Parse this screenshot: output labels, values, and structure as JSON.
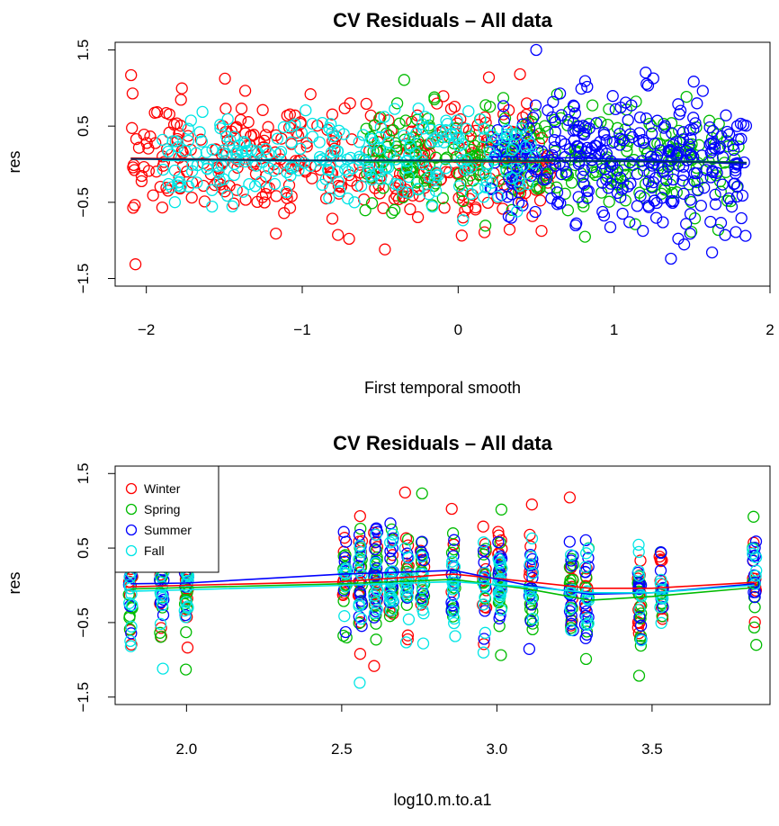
{
  "chart_data": [
    {
      "type": "scatter",
      "title": "CV Residuals – All data",
      "xlabel": "First temporal smooth",
      "ylabel": "res",
      "xlim": [
        -2.2,
        2.0
      ],
      "ylim": [
        -1.6,
        1.6
      ],
      "x_ticks": [
        "−2",
        "−1",
        "0",
        "1",
        "2"
      ],
      "x_tick_values": [
        -2,
        -1,
        0,
        1,
        2
      ],
      "y_ticks": [
        "−1.5",
        "−0.5",
        "0.5",
        "1.5"
      ],
      "y_tick_values": [
        -1.5,
        -0.5,
        0.5,
        1.5
      ],
      "grid": false,
      "legend": null,
      "series": [
        {
          "name": "Winter",
          "color": "#ff0000",
          "x_range": [
            -2.1,
            0.6
          ],
          "spread": 0.4,
          "n": 360,
          "smooth": [
            [
              -2.1,
              0.08
            ],
            [
              -1.0,
              0.05
            ],
            [
              0.0,
              0.03
            ],
            [
              0.6,
              0.03
            ]
          ]
        },
        {
          "name": "Spring",
          "color": "#00bb00",
          "x_range": [
            -0.6,
            1.8
          ],
          "spread": 0.35,
          "n": 300,
          "smooth": [
            [
              -0.6,
              0.03
            ],
            [
              0.5,
              0.04
            ],
            [
              1.2,
              0.05
            ],
            [
              1.8,
              0.03
            ]
          ]
        },
        {
          "name": "Summer",
          "color": "#0000ff",
          "x_range": [
            0.2,
            1.85
          ],
          "spread": 0.45,
          "n": 320,
          "smooth": [
            [
              0.2,
              0.1
            ],
            [
              0.8,
              0.08
            ],
            [
              1.3,
              0.05
            ],
            [
              1.85,
              0.0
            ]
          ]
        },
        {
          "name": "Fall",
          "color": "#00e5e5",
          "x_range": [
            -1.9,
            0.5
          ],
          "spread": 0.3,
          "n": 260,
          "smooth": [
            [
              -1.9,
              0.05
            ],
            [
              -1.0,
              0.04
            ],
            [
              0.0,
              0.05
            ],
            [
              0.5,
              0.05
            ]
          ]
        }
      ],
      "overall_smooth": {
        "color": "#003366",
        "points": [
          [
            -2.1,
            0.07
          ],
          [
            -1.0,
            0.05
          ],
          [
            0.0,
            0.05
          ],
          [
            1.0,
            0.04
          ],
          [
            1.85,
            0.02
          ]
        ]
      }
    },
    {
      "type": "scatter",
      "title": "CV Residuals – All data",
      "xlabel": "log10.m.to.a1",
      "ylabel": "res",
      "xlim": [
        1.77,
        3.88
      ],
      "ylim": [
        -1.6,
        1.6
      ],
      "x_ticks": [
        "2.0",
        "2.5",
        "3.0",
        "3.5"
      ],
      "x_tick_values": [
        2.0,
        2.5,
        3.0,
        3.5
      ],
      "y_ticks": [
        "−1.5",
        "−0.5",
        "0.5",
        "1.5"
      ],
      "y_tick_values": [
        -1.5,
        -0.5,
        0.5,
        1.5
      ],
      "grid": false,
      "legend": "top-left",
      "column_x": [
        1.82,
        1.92,
        2.0,
        2.51,
        2.56,
        2.61,
        2.66,
        2.71,
        2.76,
        2.86,
        2.96,
        3.01,
        3.11,
        3.24,
        3.29,
        3.46,
        3.53,
        3.83
      ],
      "series": [
        {
          "name": "Winter",
          "color": "#ff0000",
          "smooth": [
            [
              1.82,
              -0.02
            ],
            [
              2.0,
              0.0
            ],
            [
              2.5,
              0.05
            ],
            [
              2.86,
              0.15
            ],
            [
              3.1,
              0.05
            ],
            [
              3.3,
              -0.04
            ],
            [
              3.5,
              -0.04
            ],
            [
              3.83,
              0.04
            ]
          ]
        },
        {
          "name": "Spring",
          "color": "#00bb00",
          "smooth": [
            [
              1.82,
              -0.05
            ],
            [
              2.0,
              -0.03
            ],
            [
              2.5,
              0.02
            ],
            [
              2.86,
              0.08
            ],
            [
              3.1,
              -0.05
            ],
            [
              3.3,
              -0.2
            ],
            [
              3.5,
              -0.15
            ],
            [
              3.83,
              -0.03
            ]
          ]
        },
        {
          "name": "Summer",
          "color": "#0000ff",
          "smooth": [
            [
              1.82,
              0.02
            ],
            [
              2.0,
              0.03
            ],
            [
              2.5,
              0.15
            ],
            [
              2.86,
              0.2
            ],
            [
              3.1,
              0.0
            ],
            [
              3.3,
              -0.12
            ],
            [
              3.5,
              -0.1
            ],
            [
              3.83,
              0.02
            ]
          ]
        },
        {
          "name": "Fall",
          "color": "#00e5e5",
          "smooth": [
            [
              1.82,
              -0.08
            ],
            [
              2.0,
              -0.06
            ],
            [
              2.5,
              0.0
            ],
            [
              2.86,
              0.05
            ],
            [
              3.1,
              -0.02
            ],
            [
              3.3,
              -0.1
            ],
            [
              3.5,
              -0.1
            ],
            [
              3.83,
              0.0
            ]
          ]
        }
      ]
    }
  ]
}
